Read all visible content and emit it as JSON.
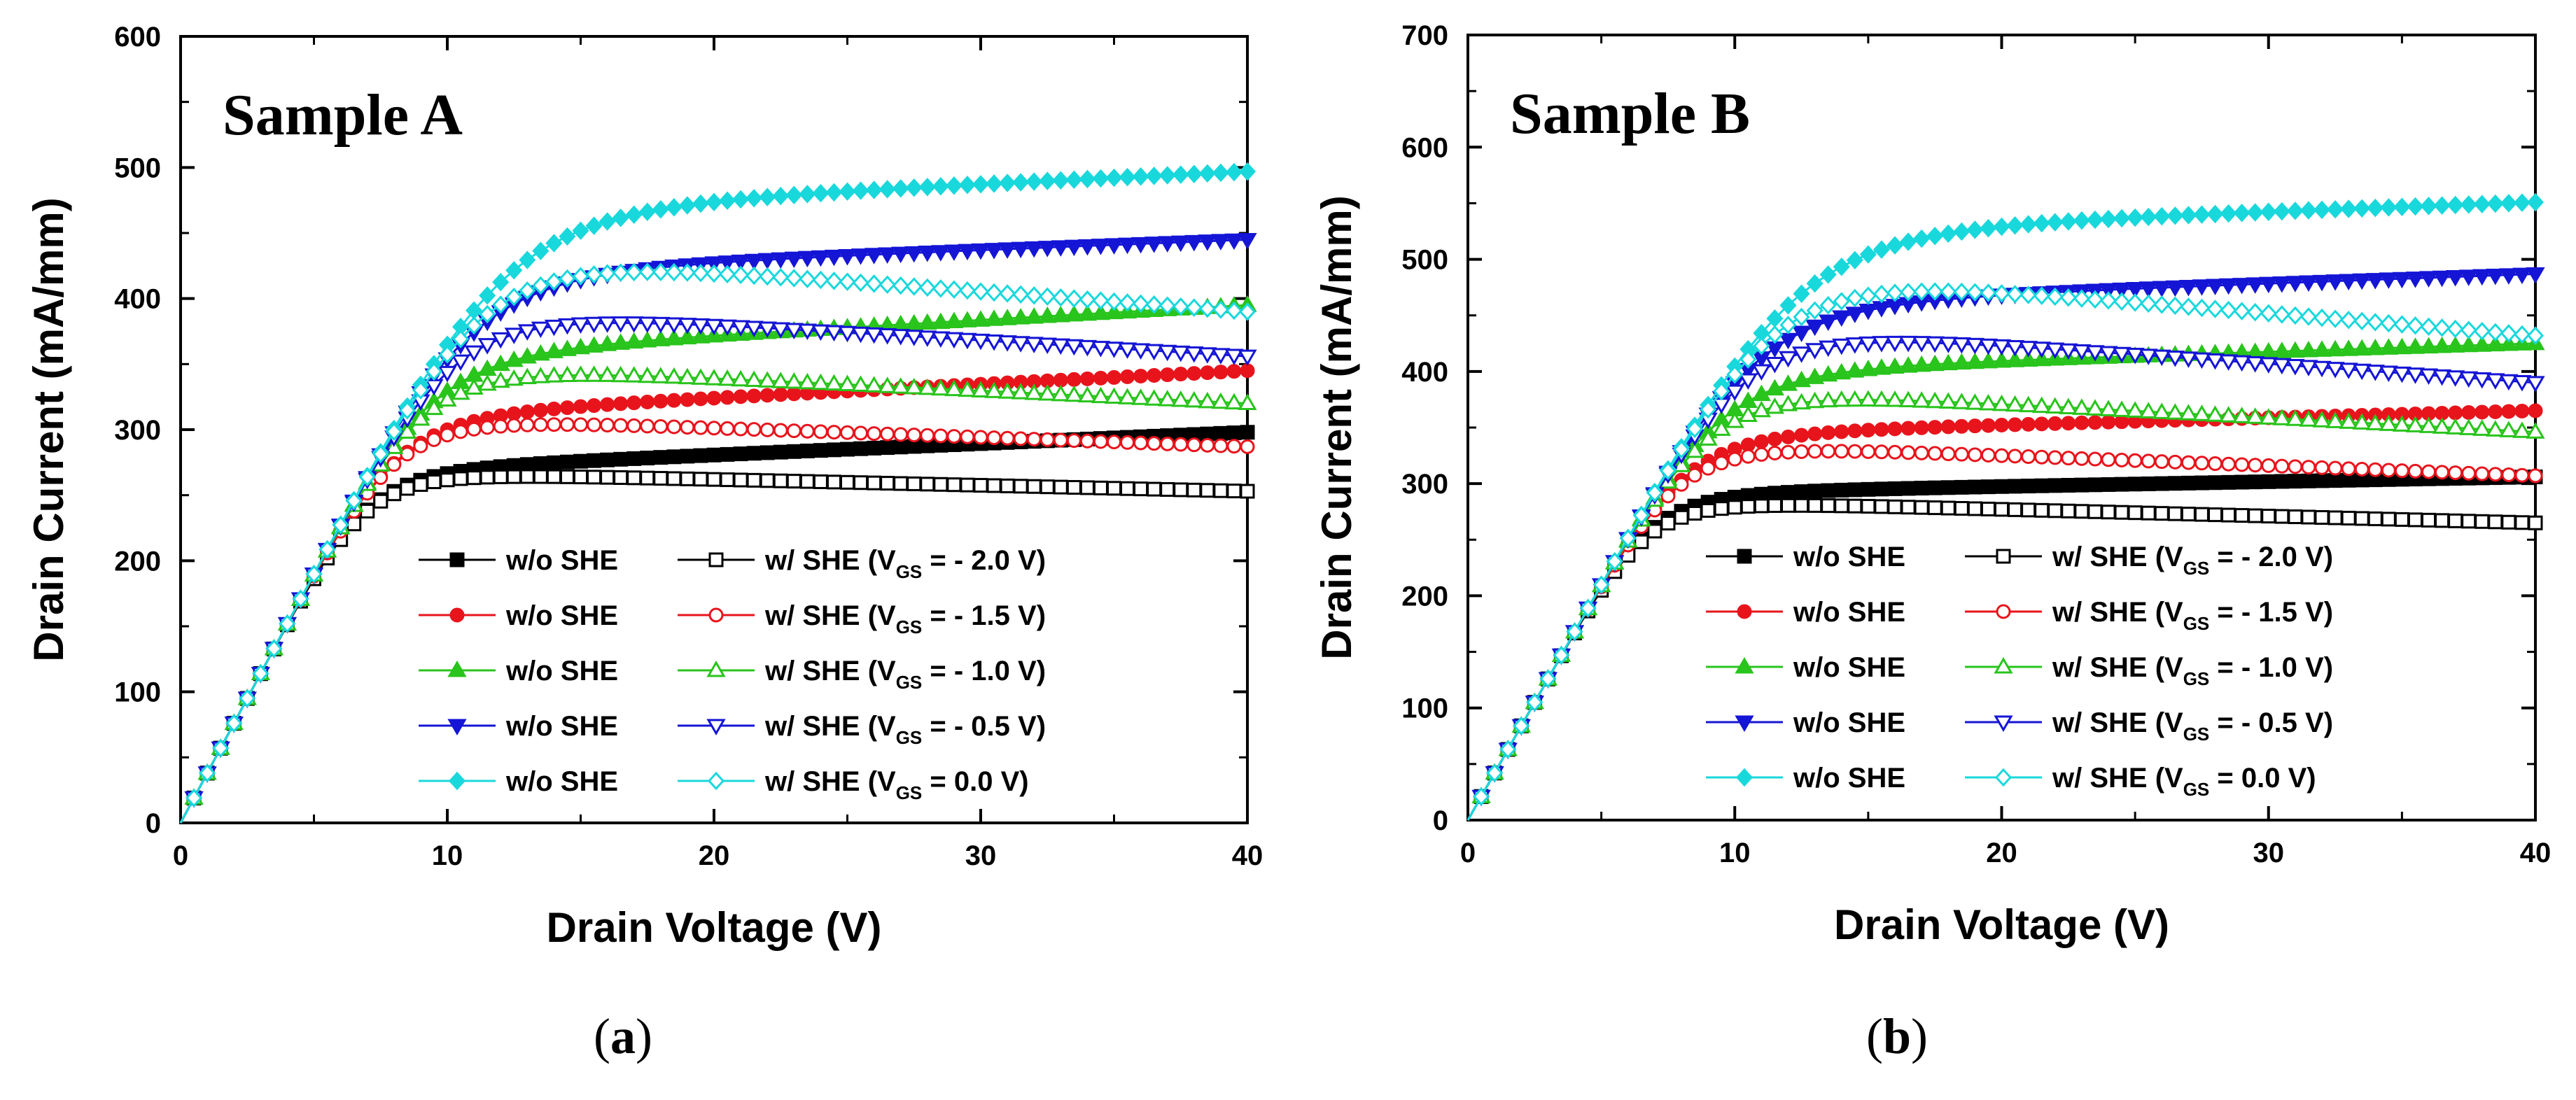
{
  "captions": [
    "a",
    "b"
  ],
  "chart_data": [
    {
      "type": "line",
      "title": "Sample A",
      "xlabel": "Drain Voltage (V)",
      "ylabel": "Drain Current (mA/mm)",
      "xlim": [
        0,
        40
      ],
      "ylim": [
        0,
        600
      ],
      "xticks": [
        "0",
        "10",
        "20",
        "30",
        "40"
      ],
      "yticks": [
        "0",
        "100",
        "200",
        "300",
        "400",
        "500",
        "600"
      ],
      "legend_position": "bottom-right",
      "slope": 38,
      "series": [
        {
          "name": "w/o SHE",
          "vgs": "- 2.0",
          "color": "#000000",
          "marker": "square",
          "filled": true,
          "knee": 7.5,
          "isat": 270,
          "end": 298
        },
        {
          "name": "w/ SHE (VGS = - 2.0 V)",
          "vgs": "- 2.0",
          "color": "#000000",
          "marker": "square",
          "filled": false,
          "knee": 7.0,
          "isat": 268,
          "end": 253
        },
        {
          "name": "w/o SHE",
          "vgs": "- 1.5",
          "color": "#e8141c",
          "marker": "circle",
          "filled": true,
          "knee": 8.0,
          "isat": 312,
          "end": 345
        },
        {
          "name": "w/ SHE (VGS = - 1.5 V)",
          "vgs": "- 1.5",
          "color": "#e8141c",
          "marker": "circle",
          "filled": false,
          "knee": 8.0,
          "isat": 310,
          "end": 287
        },
        {
          "name": "w/o SHE",
          "vgs": "- 1.0",
          "color": "#29c41c",
          "marker": "triangle-up",
          "filled": true,
          "knee": 9.0,
          "isat": 360,
          "end": 395
        },
        {
          "name": "w/ SHE (VGS = - 1.0 V)",
          "vgs": "- 1.0",
          "color": "#29c41c",
          "marker": "triangle-up",
          "filled": false,
          "knee": 9.0,
          "isat": 350,
          "end": 320
        },
        {
          "name": "w/o SHE",
          "vgs": "- 0.5",
          "color": "#1515d6",
          "marker": "triangle-down",
          "filled": true,
          "knee": 10.5,
          "isat": 422,
          "end": 445
        },
        {
          "name": "w/ SHE (VGS = - 0.5 V)",
          "vgs": "- 0.5",
          "color": "#1515d6",
          "marker": "triangle-down",
          "filled": false,
          "knee": 10.5,
          "isat": 392,
          "end": 356
        },
        {
          "name": "w/o SHE",
          "vgs": "0.0",
          "color": "#19d8dc",
          "marker": "diamond",
          "filled": true,
          "knee": 11.0,
          "isat": 470,
          "end": 497
        },
        {
          "name": "w/ SHE (VGS = 0.0 V)",
          "vgs": "0.0",
          "color": "#19d8dc",
          "marker": "diamond",
          "filled": false,
          "knee": 11.0,
          "isat": 435,
          "end": 390
        }
      ]
    },
    {
      "type": "line",
      "title": "Sample B",
      "xlabel": "Drain Voltage (V)",
      "ylabel": "Drain Current (mA/mm)",
      "xlim": [
        0,
        40
      ],
      "ylim": [
        0,
        700
      ],
      "xticks": [
        "0",
        "10",
        "20",
        "30",
        "40"
      ],
      "yticks": [
        "0",
        "100",
        "200",
        "300",
        "400",
        "500",
        "600",
        "700"
      ],
      "legend_position": "bottom-right",
      "slope": 42,
      "series": [
        {
          "name": "w/o SHE",
          "vgs": "- 2.0",
          "color": "#000000",
          "marker": "square",
          "filled": true,
          "knee": 7.0,
          "isat": 292,
          "end": 306
        },
        {
          "name": "w/ SHE (VGS = - 2.0 V)",
          "vgs": "- 2.0",
          "color": "#000000",
          "marker": "square",
          "filled": false,
          "knee": 7.0,
          "isat": 285,
          "end": 265
        },
        {
          "name": "w/o SHE",
          "vgs": "- 1.5",
          "color": "#e8141c",
          "marker": "circle",
          "filled": true,
          "knee": 8.0,
          "isat": 345,
          "end": 365
        },
        {
          "name": "w/ SHE (VGS = - 1.5 V)",
          "vgs": "- 1.5",
          "color": "#e8141c",
          "marker": "circle",
          "filled": false,
          "knee": 8.0,
          "isat": 336,
          "end": 307
        },
        {
          "name": "w/o SHE",
          "vgs": "- 1.0",
          "color": "#29c41c",
          "marker": "triangle-up",
          "filled": true,
          "knee": 9.0,
          "isat": 402,
          "end": 425
        },
        {
          "name": "w/ SHE (VGS = - 1.0 V)",
          "vgs": "- 1.0",
          "color": "#29c41c",
          "marker": "triangle-up",
          "filled": false,
          "knee": 9.0,
          "isat": 385,
          "end": 346
        },
        {
          "name": "w/o SHE",
          "vgs": "- 0.5",
          "color": "#1515d6",
          "marker": "triangle-down",
          "filled": true,
          "knee": 10.0,
          "isat": 462,
          "end": 487
        },
        {
          "name": "w/ SHE (VGS = - 0.5 V)",
          "vgs": "- 0.5",
          "color": "#1515d6",
          "marker": "triangle-down",
          "filled": false,
          "knee": 10.5,
          "isat": 440,
          "end": 390
        },
        {
          "name": "w/o SHE",
          "vgs": "0.0",
          "color": "#19d8dc",
          "marker": "diamond",
          "filled": true,
          "knee": 10.5,
          "isat": 527,
          "end": 551
        },
        {
          "name": "w/ SHE (VGS = 0.0 V)",
          "vgs": "0.0",
          "color": "#19d8dc",
          "marker": "diamond",
          "filled": false,
          "knee": 11.0,
          "isat": 490,
          "end": 432
        }
      ]
    }
  ],
  "legend_text": {
    "without": "w/o SHE",
    "with_prefix": "w/ SHE (V",
    "with_sub": "GS",
    "with_eq": " = ",
    "with_suffix": " V)"
  }
}
